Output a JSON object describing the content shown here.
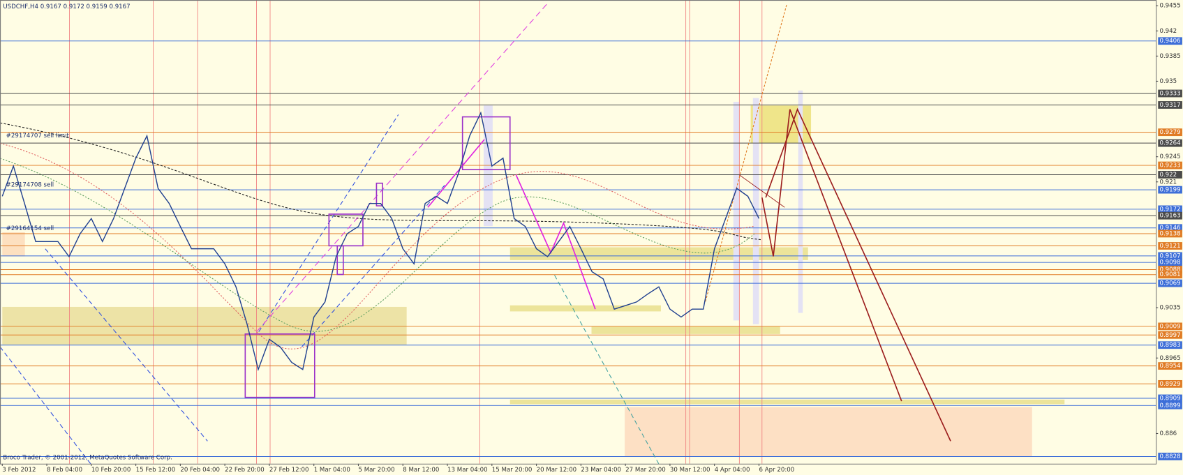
{
  "chart_data": {
    "type": "line",
    "title": "USDCHF,H4  0.9167 0.9172 0.9159 0.9167",
    "annotations": [
      "#29174707 sell limit",
      "#29174708 sell",
      "#29164154 sell",
      "Broco Trader, © 2001-2012, MetaQuotes Software Corp."
    ],
    "categories": [
      "3 Feb 2012",
      null,
      null,
      null,
      "8 Feb 04:00",
      null,
      null,
      null,
      "10 Feb 20:00",
      null,
      null,
      null,
      "15 Feb 12:00",
      null,
      null,
      null,
      "20 Feb 04:00",
      null,
      null,
      null,
      "22 Feb 20:00",
      null,
      null,
      null,
      "27 Feb 12:00",
      null,
      null,
      null,
      "1 Mar 04:00",
      null,
      null,
      null,
      "5 Mar 20:00",
      null,
      null,
      null,
      "8 Mar 12:00",
      null,
      null,
      null,
      "13 Mar 04:00",
      null,
      null,
      null,
      "15 Mar 20:00",
      null,
      null,
      null,
      "20 Mar 12:00",
      null,
      null,
      null,
      "23 Mar 04:00",
      null,
      null,
      null,
      "27 Mar 20:00",
      null,
      null,
      null,
      "30 Mar 12:00",
      null,
      null,
      null,
      "4 Apr 04:00",
      null,
      null,
      null,
      "6 Apr 20:00"
    ],
    "series": [
      {
        "color": "#1f3f8f",
        "values": [
          0.919,
          0.9232,
          0.918,
          0.9127,
          0.9127,
          0.9127,
          0.9106,
          0.9138,
          0.9159,
          0.9127,
          0.9159,
          0.9201,
          0.9243,
          0.9274,
          0.9201,
          0.918,
          0.9148,
          0.9117,
          0.9117,
          0.9117,
          0.9096,
          0.9064,
          0.9012,
          0.8949,
          0.8991,
          0.898,
          0.8959,
          0.8949,
          0.9022,
          0.9043,
          0.9106,
          0.9138,
          0.9148,
          0.918,
          0.918,
          0.9159,
          0.9117,
          0.9096,
          0.918,
          0.919,
          0.918,
          0.9222,
          0.9274,
          0.9306,
          0.9232,
          0.9243,
          0.9159,
          0.9148,
          0.9117,
          0.9106,
          0.9127,
          0.9148,
          0.9117,
          0.9085,
          0.9075,
          0.9033,
          0.9038,
          0.9043,
          0.9054,
          0.9064,
          0.9033,
          0.9022,
          0.9033,
          0.9033,
          0.9117,
          0.9159,
          0.9201,
          0.919,
          0.9159
        ]
      }
    ],
    "ylim": [
      0.8818,
      0.9463
    ],
    "yticks": [
      0.9455,
      0.942,
      0.9385,
      0.935,
      0.9245,
      0.921,
      0.9035,
      0.8965,
      0.886
    ],
    "levels": [
      {
        "value": 0.9406,
        "color": "#3d6ed8"
      },
      {
        "value": 0.9333,
        "color": "#4a4a4a"
      },
      {
        "value": 0.9317,
        "color": "#4a4a4a"
      },
      {
        "value": 0.9279,
        "color": "#e07b24"
      },
      {
        "value": 0.9264,
        "color": "#4a4a4a"
      },
      {
        "value": 0.9233,
        "color": "#e07b24"
      },
      {
        "value": 0.922,
        "color": "#4a4a4a"
      },
      {
        "value": 0.9199,
        "color": "#3d6ed8"
      },
      {
        "value": 0.9172,
        "color": "#3d6ed8"
      },
      {
        "value": 0.9163,
        "color": "#4a4a4a"
      },
      {
        "value": 0.9146,
        "color": "#3d6ed8"
      },
      {
        "value": 0.9138,
        "color": "#e07b24"
      },
      {
        "value": 0.9121,
        "color": "#e07b24"
      },
      {
        "value": 0.9107,
        "color": "#3d6ed8"
      },
      {
        "value": 0.9098,
        "color": "#3d6ed8"
      },
      {
        "value": 0.9088,
        "color": "#e07b24"
      },
      {
        "value": 0.9081,
        "color": "#e07b24"
      },
      {
        "value": 0.9069,
        "color": "#3d6ed8"
      },
      {
        "value": 0.9009,
        "color": "#e07b24"
      },
      {
        "value": 0.8997,
        "color": "#e07b24"
      },
      {
        "value": 0.8983,
        "color": "#3d6ed8"
      },
      {
        "value": 0.8954,
        "color": "#e07b24"
      },
      {
        "value": 0.8929,
        "color": "#e07b24"
      },
      {
        "value": 0.8909,
        "color": "#3d6ed8"
      },
      {
        "value": 0.8899,
        "color": "#3d6ed8"
      },
      {
        "value": 0.8828,
        "color": "#3d6ed8"
      }
    ]
  }
}
